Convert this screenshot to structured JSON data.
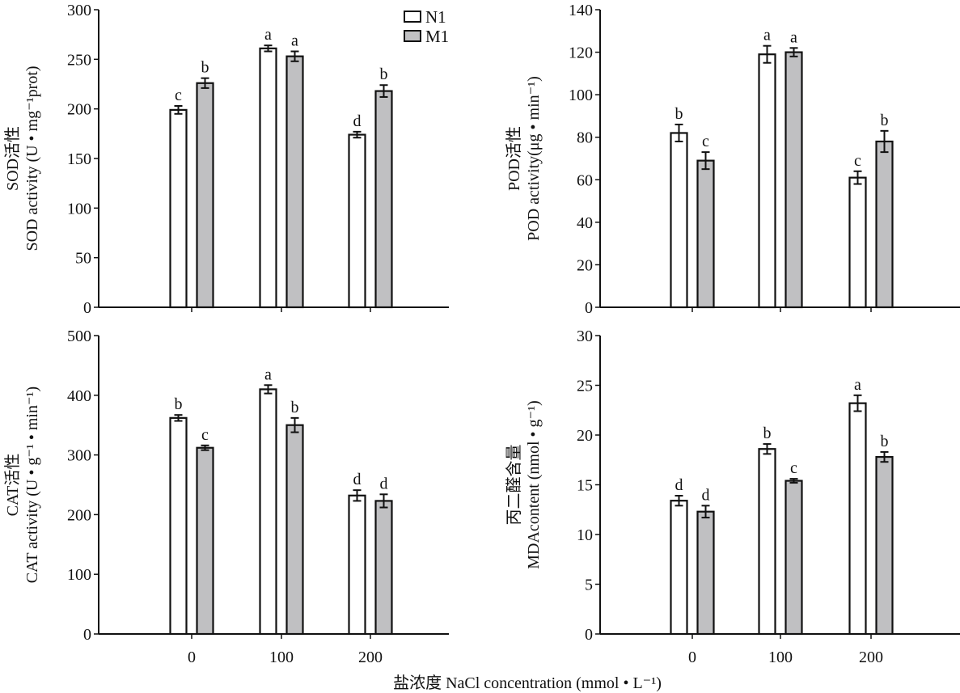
{
  "chart_data": {
    "type": "bar",
    "categories": [
      "0",
      "100",
      "200"
    ],
    "xlabel": "盐浓度 NaCl concentration (mmol • L⁻¹)",
    "legend": {
      "position": "top-right of first panel",
      "entries": [
        "N1",
        "M1"
      ]
    },
    "colors": {
      "N1": "#ffffff",
      "M1": "#c0c0c2",
      "stroke": "#111111"
    },
    "panels": [
      {
        "id": "sod",
        "ylabel_cn": "SOD活性",
        "ylabel": "SOD activity (U • mg⁻¹prot)",
        "ylim": [
          0,
          300
        ],
        "yticks": [
          0,
          50,
          100,
          150,
          200,
          250,
          300
        ],
        "show_xticklabels": false,
        "series": [
          {
            "name": "N1",
            "values": [
              199,
              261,
              174
            ],
            "errors": [
              4,
              3,
              3
            ],
            "letters": [
              "c",
              "a",
              "d"
            ]
          },
          {
            "name": "M1",
            "values": [
              226,
              253,
              218
            ],
            "errors": [
              5,
              5,
              6
            ],
            "letters": [
              "b",
              "a",
              "b"
            ]
          }
        ]
      },
      {
        "id": "pod",
        "ylabel_cn": "POD活性",
        "ylabel": "POD activity(μg • min⁻¹)",
        "ylim": [
          0,
          140
        ],
        "yticks": [
          0,
          20,
          40,
          60,
          80,
          100,
          120,
          140
        ],
        "show_xticklabels": false,
        "series": [
          {
            "name": "N1",
            "values": [
              82,
              119,
              61
            ],
            "errors": [
              4,
              4,
              3
            ],
            "letters": [
              "b",
              "a",
              "c"
            ]
          },
          {
            "name": "M1",
            "values": [
              69,
              120,
              78
            ],
            "errors": [
              4,
              2,
              5
            ],
            "letters": [
              "c",
              "a",
              "b"
            ]
          }
        ]
      },
      {
        "id": "cat",
        "ylabel_cn": "CAT活性",
        "ylabel": "CAT activity (U • g⁻¹ • min⁻¹)",
        "ylim": [
          0,
          500
        ],
        "yticks": [
          0,
          100,
          200,
          300,
          400,
          500
        ],
        "show_xticklabels": true,
        "series": [
          {
            "name": "N1",
            "values": [
              362,
              410,
              232
            ],
            "errors": [
              5,
              7,
              9
            ],
            "letters": [
              "b",
              "a",
              "d"
            ]
          },
          {
            "name": "M1",
            "values": [
              312,
              350,
              223
            ],
            "errors": [
              4,
              12,
              11
            ],
            "letters": [
              "c",
              "b",
              "d"
            ]
          }
        ]
      },
      {
        "id": "mda",
        "ylabel_cn": "丙二醛含量",
        "ylabel": "MDAcontent (nmol • g⁻¹)",
        "ylim": [
          0,
          30
        ],
        "yticks": [
          0,
          5,
          10,
          15,
          20,
          25,
          30
        ],
        "show_xticklabels": true,
        "series": [
          {
            "name": "N1",
            "values": [
              13.4,
              18.6,
              23.2
            ],
            "errors": [
              0.5,
              0.5,
              0.8
            ],
            "letters": [
              "d",
              "b",
              "a"
            ]
          },
          {
            "name": "M1",
            "values": [
              12.3,
              15.4,
              17.8
            ],
            "errors": [
              0.6,
              0.2,
              0.5
            ],
            "letters": [
              "d",
              "c",
              "b"
            ]
          }
        ]
      }
    ]
  }
}
